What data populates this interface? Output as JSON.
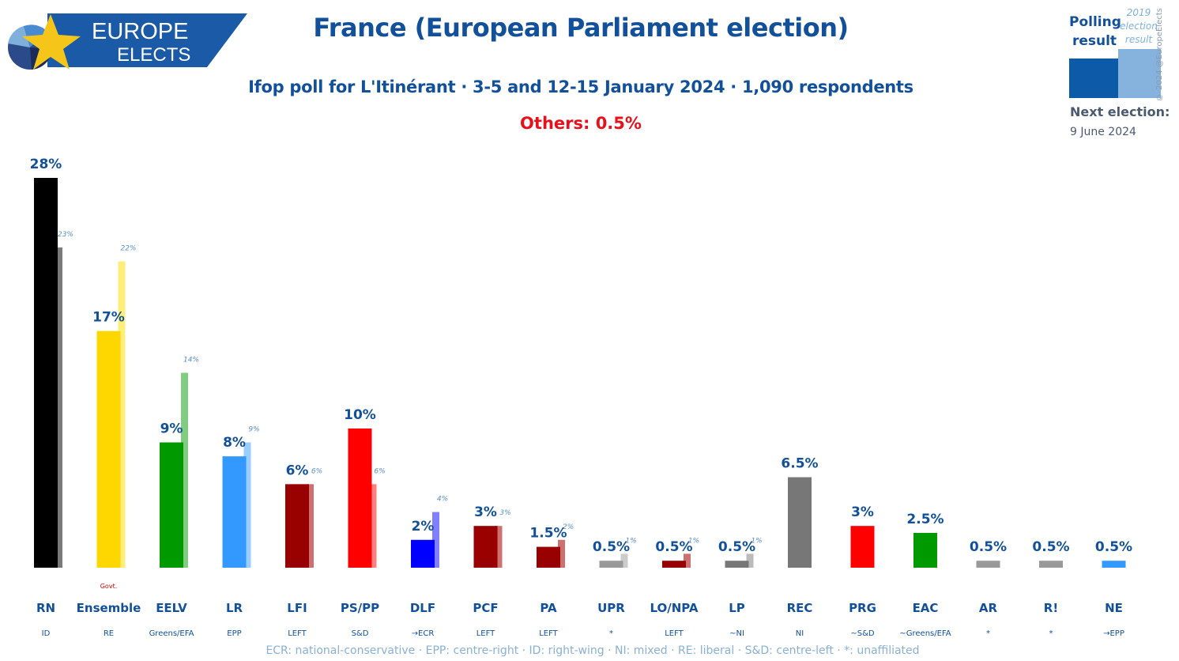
{
  "branding": {
    "logo_line1": "EUROPE",
    "logo_line2": "ELECTS",
    "banner_color": "#1a5aa6",
    "star_color": "#f6c51a"
  },
  "header": {
    "title": "France (European Parliament election)",
    "subtitle": "Ifop poll for L'Itinérant · 3-5 and 12-15 January 2024 · 1,090 respondents",
    "others": "Others: 0.5%"
  },
  "legend": {
    "polling_label_line1": "Polling",
    "polling_label_line2": "result",
    "previous_label_line1": "2019",
    "previous_label_line2": "election",
    "previous_label_line3": "result",
    "copyright": "© 2024 @EuropeElects",
    "next_election_label": "Next election:",
    "next_election_date": "9 June 2024"
  },
  "footnote": "ECR: national-conservative · EPP: centre-right · ID: right-wing · NI: mixed · RE: liberal · S&D: centre-left · *: unaffiliated",
  "chart_data": {
    "type": "bar",
    "ylim": [
      0,
      28
    ],
    "grid": false,
    "legend_position": "top-right",
    "series": [
      {
        "name": "Polling result",
        "values": [
          28,
          17,
          9,
          8,
          6,
          10,
          2,
          3,
          1.5,
          0.5,
          0.5,
          0.5,
          6.5,
          3,
          2.5,
          0.5,
          0.5,
          0.5
        ]
      },
      {
        "name": "2019 election result",
        "values": [
          23,
          22,
          14,
          9,
          6,
          6,
          4,
          3,
          2,
          1,
          1,
          1,
          null,
          null,
          null,
          null,
          null,
          null
        ]
      }
    ],
    "categories": [
      "RN",
      "Ensemble",
      "EELV",
      "LR",
      "LFI",
      "PS/PP",
      "DLF",
      "PCF",
      "PA",
      "UPR",
      "LO/NPA",
      "LP",
      "REC",
      "PRG",
      "EAC",
      "AR",
      "R!",
      "NE"
    ],
    "groups": [
      "ID",
      "RE",
      "Greens/EFA",
      "EPP",
      "LEFT",
      "S&D",
      "→ECR",
      "LEFT",
      "LEFT",
      "*",
      "LEFT",
      "~NI",
      "NI",
      "~S&D",
      "~Greens/EFA",
      "*",
      "*",
      "→EPP"
    ],
    "value_labels": [
      "28%",
      "17%",
      "9%",
      "8%",
      "6%",
      "10%",
      "2%",
      "3%",
      "1.5%",
      "0.5%",
      "0.5%",
      "0.5%",
      "6.5%",
      "3%",
      "2.5%",
      "0.5%",
      "0.5%",
      "0.5%"
    ],
    "previous_labels": [
      "23%",
      "22%",
      "14%",
      "9%",
      "6%",
      "6%",
      "4%",
      "3%",
      "2%",
      "1%",
      "1%",
      "1%",
      "",
      "",
      "",
      "",
      "",
      ""
    ],
    "annotations": [
      {
        "category": "Ensemble",
        "text": "Govt."
      }
    ],
    "colors": [
      "#000000",
      "#ffd700",
      "#009a00",
      "#3399ff",
      "#990000",
      "#ff0000",
      "#0000ff",
      "#990000",
      "#990000",
      "#999999",
      "#990000",
      "#777777",
      "#777777",
      "#ff0000",
      "#009a00",
      "#999999",
      "#999999",
      "#3399ff"
    ],
    "previous_colors": [
      "#7a7a7a",
      "#ffee7a",
      "#80cc80",
      "#99ccff",
      "#cc7070",
      "#ff8080",
      "#8080ff",
      "#cc7070",
      "#cc7070",
      "#cccccc",
      "#cc7070",
      "#bbbbbb",
      "",
      "",
      "",
      "",
      "",
      ""
    ]
  }
}
